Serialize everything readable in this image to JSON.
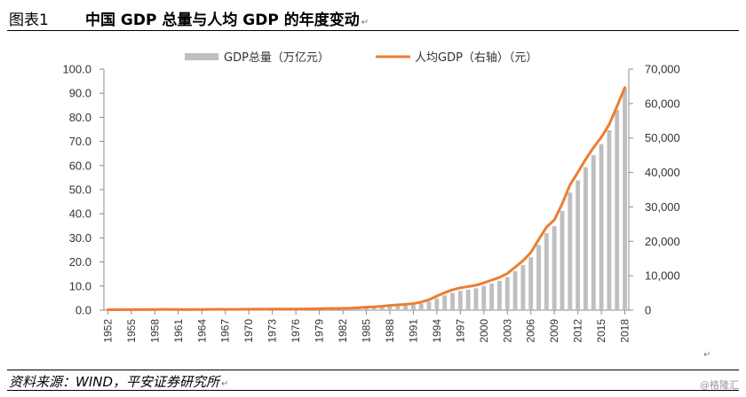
{
  "header": {
    "figure_label": "图表1",
    "title": "中国 GDP 总量与人均 GDP 的年度变动",
    "para_mark": "↵"
  },
  "footer": {
    "source": "资料来源：WIND，平安证券研究所",
    "para_mark": "↵",
    "watermark": "@格隆汇",
    "stray_mark": "↵"
  },
  "colors": {
    "bar": "#bfbfbf",
    "line": "#ed7d31",
    "axis": "#8c8c8c"
  },
  "chart_data": {
    "type": "bar+line",
    "legend_position": "top-center",
    "grid": false,
    "years": [
      1952,
      1953,
      1954,
      1955,
      1956,
      1957,
      1958,
      1959,
      1960,
      1961,
      1962,
      1963,
      1964,
      1965,
      1966,
      1967,
      1968,
      1969,
      1970,
      1971,
      1972,
      1973,
      1974,
      1975,
      1976,
      1977,
      1978,
      1979,
      1980,
      1981,
      1982,
      1983,
      1984,
      1985,
      1986,
      1987,
      1988,
      1989,
      1990,
      1991,
      1992,
      1993,
      1994,
      1995,
      1996,
      1997,
      1998,
      1999,
      2000,
      2001,
      2002,
      2003,
      2004,
      2005,
      2006,
      2007,
      2008,
      2009,
      2010,
      2011,
      2012,
      2013,
      2014,
      2015,
      2016,
      2017,
      2018
    ],
    "x_tick_labels": [
      "1952",
      "1955",
      "1958",
      "1961",
      "1964",
      "1967",
      "1970",
      "1973",
      "1976",
      "1979",
      "1982",
      "1985",
      "1988",
      "1991",
      "1994",
      "1997",
      "2000",
      "2003",
      "2006",
      "2009",
      "2012",
      "2015",
      "2018"
    ],
    "left_axis": {
      "min": 0,
      "max": 100,
      "step": 10,
      "tick_labels": [
        "0.0",
        "10.0",
        "20.0",
        "30.0",
        "40.0",
        "50.0",
        "60.0",
        "70.0",
        "80.0",
        "90.0",
        "100.0"
      ]
    },
    "right_axis": {
      "min": 0,
      "max": 70000,
      "step": 10000,
      "tick_labels": [
        "0",
        "10,000",
        "20,000",
        "30,000",
        "40,000",
        "50,000",
        "60,000",
        "70,000"
      ]
    },
    "series": [
      {
        "name": "GDP总量（万亿元）",
        "type": "bar",
        "axis": "left",
        "values": [
          0.07,
          0.08,
          0.09,
          0.09,
          0.1,
          0.11,
          0.13,
          0.14,
          0.15,
          0.12,
          0.12,
          0.12,
          0.15,
          0.17,
          0.19,
          0.18,
          0.17,
          0.19,
          0.23,
          0.25,
          0.26,
          0.28,
          0.28,
          0.3,
          0.29,
          0.32,
          0.37,
          0.41,
          0.46,
          0.49,
          0.54,
          0.6,
          0.73,
          0.91,
          1.04,
          1.22,
          1.52,
          1.72,
          1.89,
          2.22,
          2.72,
          3.57,
          4.86,
          6.13,
          7.18,
          7.97,
          8.52,
          9.06,
          10.03,
          11.09,
          12.17,
          13.74,
          16.18,
          18.73,
          21.94,
          27.01,
          31.92,
          34.85,
          41.21,
          48.79,
          53.86,
          59.3,
          64.36,
          68.89,
          74.64,
          83.2,
          91.93
        ]
      },
      {
        "name": "人均GDP（右轴）（元）",
        "type": "line",
        "axis": "right",
        "values": [
          119,
          142,
          144,
          150,
          165,
          168,
          200,
          216,
          218,
          185,
          173,
          181,
          208,
          240,
          254,
          235,
          222,
          243,
          275,
          288,
          292,
          306,
          305,
          327,
          316,
          339,
          385,
          423,
          468,
          497,
          533,
          588,
          702,
          866,
          973,
          1123,
          1378,
          1536,
          1663,
          1912,
          2334,
          3027,
          4081,
          5091,
          5898,
          6481,
          6860,
          7229,
          7942,
          8717,
          9506,
          10666,
          12487,
          14368,
          16738,
          20505,
          24121,
          26222,
          30876,
          36403,
          40007,
          43852,
          47203,
          50251,
          53935,
          59201,
          64644
        ]
      }
    ]
  }
}
